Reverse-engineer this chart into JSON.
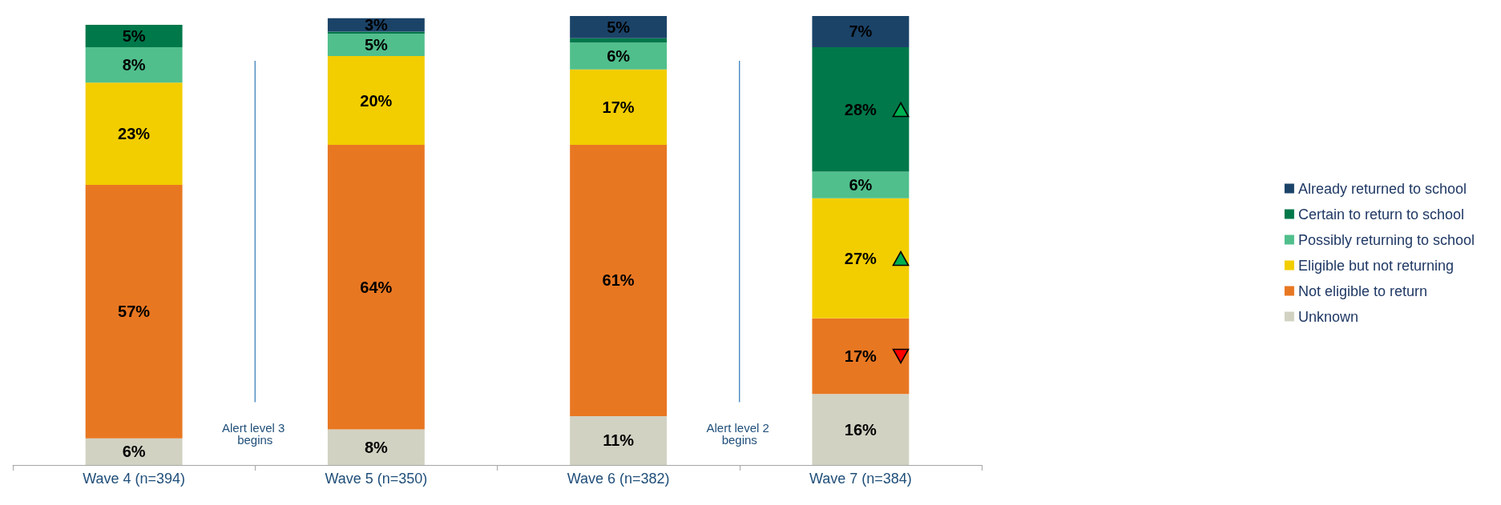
{
  "chart_data": {
    "type": "bar",
    "stacked": true,
    "categories": [
      "Wave 4 (n=394)",
      "Wave 5 (n=350)",
      "Wave 6 (n=382)",
      "Wave 7 (n=384)"
    ],
    "series": [
      {
        "name": "Unknown",
        "color": "#d2d2c3",
        "values": [
          6,
          8,
          11,
          16
        ],
        "value_labels": [
          "6%",
          "8%",
          "11%",
          "16%"
        ]
      },
      {
        "name": "Not eligible to return",
        "color": "#e87722",
        "values": [
          57,
          64,
          61,
          17
        ],
        "value_labels": [
          "57%",
          "64%",
          "61%",
          "17%"
        ]
      },
      {
        "name": "Eligible but not returning",
        "color": "#f2cd00",
        "values": [
          23,
          20,
          17,
          27
        ],
        "value_labels": [
          "23%",
          "20%",
          "17%",
          "27%"
        ]
      },
      {
        "name": "Possibly returning to school",
        "color": "#50bf8c",
        "values": [
          8,
          5,
          6,
          6
        ],
        "value_labels": [
          "8%",
          "5%",
          "6%",
          "6%"
        ]
      },
      {
        "name": "Certain to return to school",
        "color": "#00784a",
        "values": [
          5,
          0.5,
          1,
          28
        ],
        "value_labels": [
          "5%",
          null,
          null,
          "28%"
        ]
      },
      {
        "name": "Already returned to school",
        "color": "#1b4368",
        "values": [
          0,
          3,
          5,
          7
        ],
        "value_labels": [
          null,
          "3%",
          "5%",
          "7%"
        ]
      }
    ],
    "annotations": [
      "Alert level 3 begins",
      "Alert level 2 begins"
    ],
    "legend": "right",
    "grid": false
  }
}
